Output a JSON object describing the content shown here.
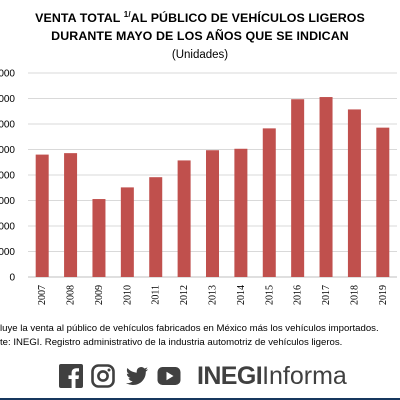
{
  "header": {
    "title_line1": "VENTA TOTAL",
    "title_sup": "1/",
    "title_line1_rest": "AL PÚBLICO DE VEHÍCULOS LIGEROS",
    "title_line2": "DURANTE MAYO DE LOS AÑOS QUE SE INDICAN",
    "subtitle": "(Unidades)"
  },
  "chart_data": {
    "type": "bar",
    "categories": [
      "2007",
      "2008",
      "2009",
      "2010",
      "2011",
      "2012",
      "2013",
      "2014",
      "2015",
      "2016",
      "2017",
      "2018",
      "2019"
    ],
    "series": [
      {
        "values": [
          84000,
          85000,
          53500,
          61500,
          68500,
          80000,
          87000,
          88000,
          102000,
          122000,
          123500,
          115000,
          102500
        ]
      }
    ],
    "y_tick_labels_visible": [
      "000",
      "000",
      "000",
      "000",
      "000",
      "000",
      "000",
      "000",
      "0"
    ],
    "ylim": [
      0,
      140000
    ],
    "grid": true,
    "bar_color": "#c0504d",
    "title": "",
    "xlabel": "",
    "ylabel": ""
  },
  "notes": {
    "footnote": "luye la venta al público de vehículos fabricados en México más los vehículos importados.",
    "source": "te: INEGI. Registro administrativo de la industria automotriz de vehículos ligeros."
  },
  "footer": {
    "social_icons": [
      "facebook-icon",
      "instagram-icon",
      "twitter-icon",
      "youtube-icon"
    ],
    "brand_strong": "INEGI",
    "brand_light": "Informa",
    "text_color": "#404040",
    "rule_color": "#17375e"
  }
}
